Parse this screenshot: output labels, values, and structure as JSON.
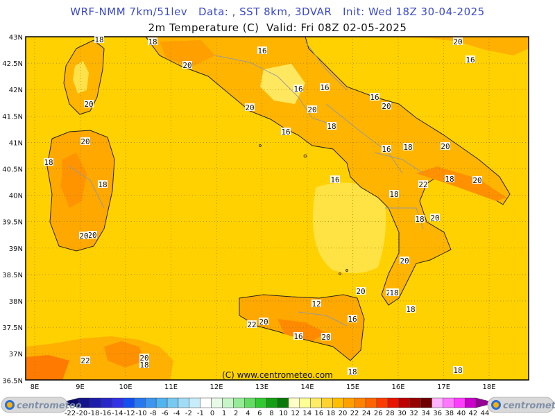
{
  "header": {
    "line1": "WRF-NMM 7km/51lev   Data: , SST 8km, 3DVAR   Init: Wed 18Z 30-04-2025",
    "line2": "2m Temperature (C)  Valid: Fri 08Z 02-05-2025"
  },
  "map": {
    "lon_ticks": [
      "8E",
      "9E",
      "10E",
      "11E",
      "12E",
      "13E",
      "14E",
      "15E",
      "16E",
      "17E",
      "18E"
    ],
    "lat_ticks": [
      "43N",
      "42.5N",
      "42N",
      "41.5N",
      "41N",
      "40.5N",
      "40N",
      "39.5N",
      "39N",
      "38.5N",
      "38N",
      "37.5N",
      "37N",
      "36.5N"
    ],
    "copyright": "(C) www.centrometeo.com",
    "contour_labels": [
      "18",
      "16",
      "20",
      "16",
      "18",
      "20",
      "16",
      "16",
      "20",
      "20",
      "20",
      "16",
      "18",
      "16",
      "20",
      "20",
      "18",
      "16",
      "18",
      "20",
      "16",
      "18",
      "18",
      "20",
      "18",
      "22",
      "20",
      "18",
      "18",
      "12",
      "20",
      "20",
      "18",
      "16",
      "18",
      "18",
      "20",
      "22",
      "16",
      "20",
      "22",
      "20",
      "18",
      "18",
      "22",
      "18",
      "20",
      "20",
      "18"
    ]
  },
  "colorbar": {
    "ticks": [
      "-22",
      "-20",
      "-18",
      "-16",
      "-14",
      "-12",
      "-10",
      "-8",
      "-6",
      "-4",
      "-2",
      "-1",
      "0",
      "1",
      "2",
      "4",
      "6",
      "8",
      "10",
      "12",
      "14",
      "16",
      "18",
      "20",
      "22",
      "24",
      "26",
      "28",
      "30",
      "32",
      "34",
      "36",
      "38",
      "40",
      "42",
      "44"
    ],
    "colors": [
      "#0a0a6e",
      "#14148c",
      "#1e1eaa",
      "#2828c8",
      "#3232e6",
      "#1450f0",
      "#2878f0",
      "#3c96f0",
      "#50b4f0",
      "#78c8f0",
      "#a0dcf5",
      "#c8ecfa",
      "#ffffff",
      "#e6fae6",
      "#c8f5c8",
      "#96eb96",
      "#64dc64",
      "#32c832",
      "#14a014",
      "#0a780a",
      "#ffffc8",
      "#ffff96",
      "#ffeb64",
      "#ffd232",
      "#ffbe00",
      "#ffa000",
      "#ff8200",
      "#ff6400",
      "#ff3c00",
      "#e61400",
      "#be0000",
      "#960000",
      "#6e0000",
      "#ffb4ff",
      "#ff78ff",
      "#ff3cff",
      "#c800c8",
      "#960096"
    ],
    "logo_text": "centrometeo"
  }
}
